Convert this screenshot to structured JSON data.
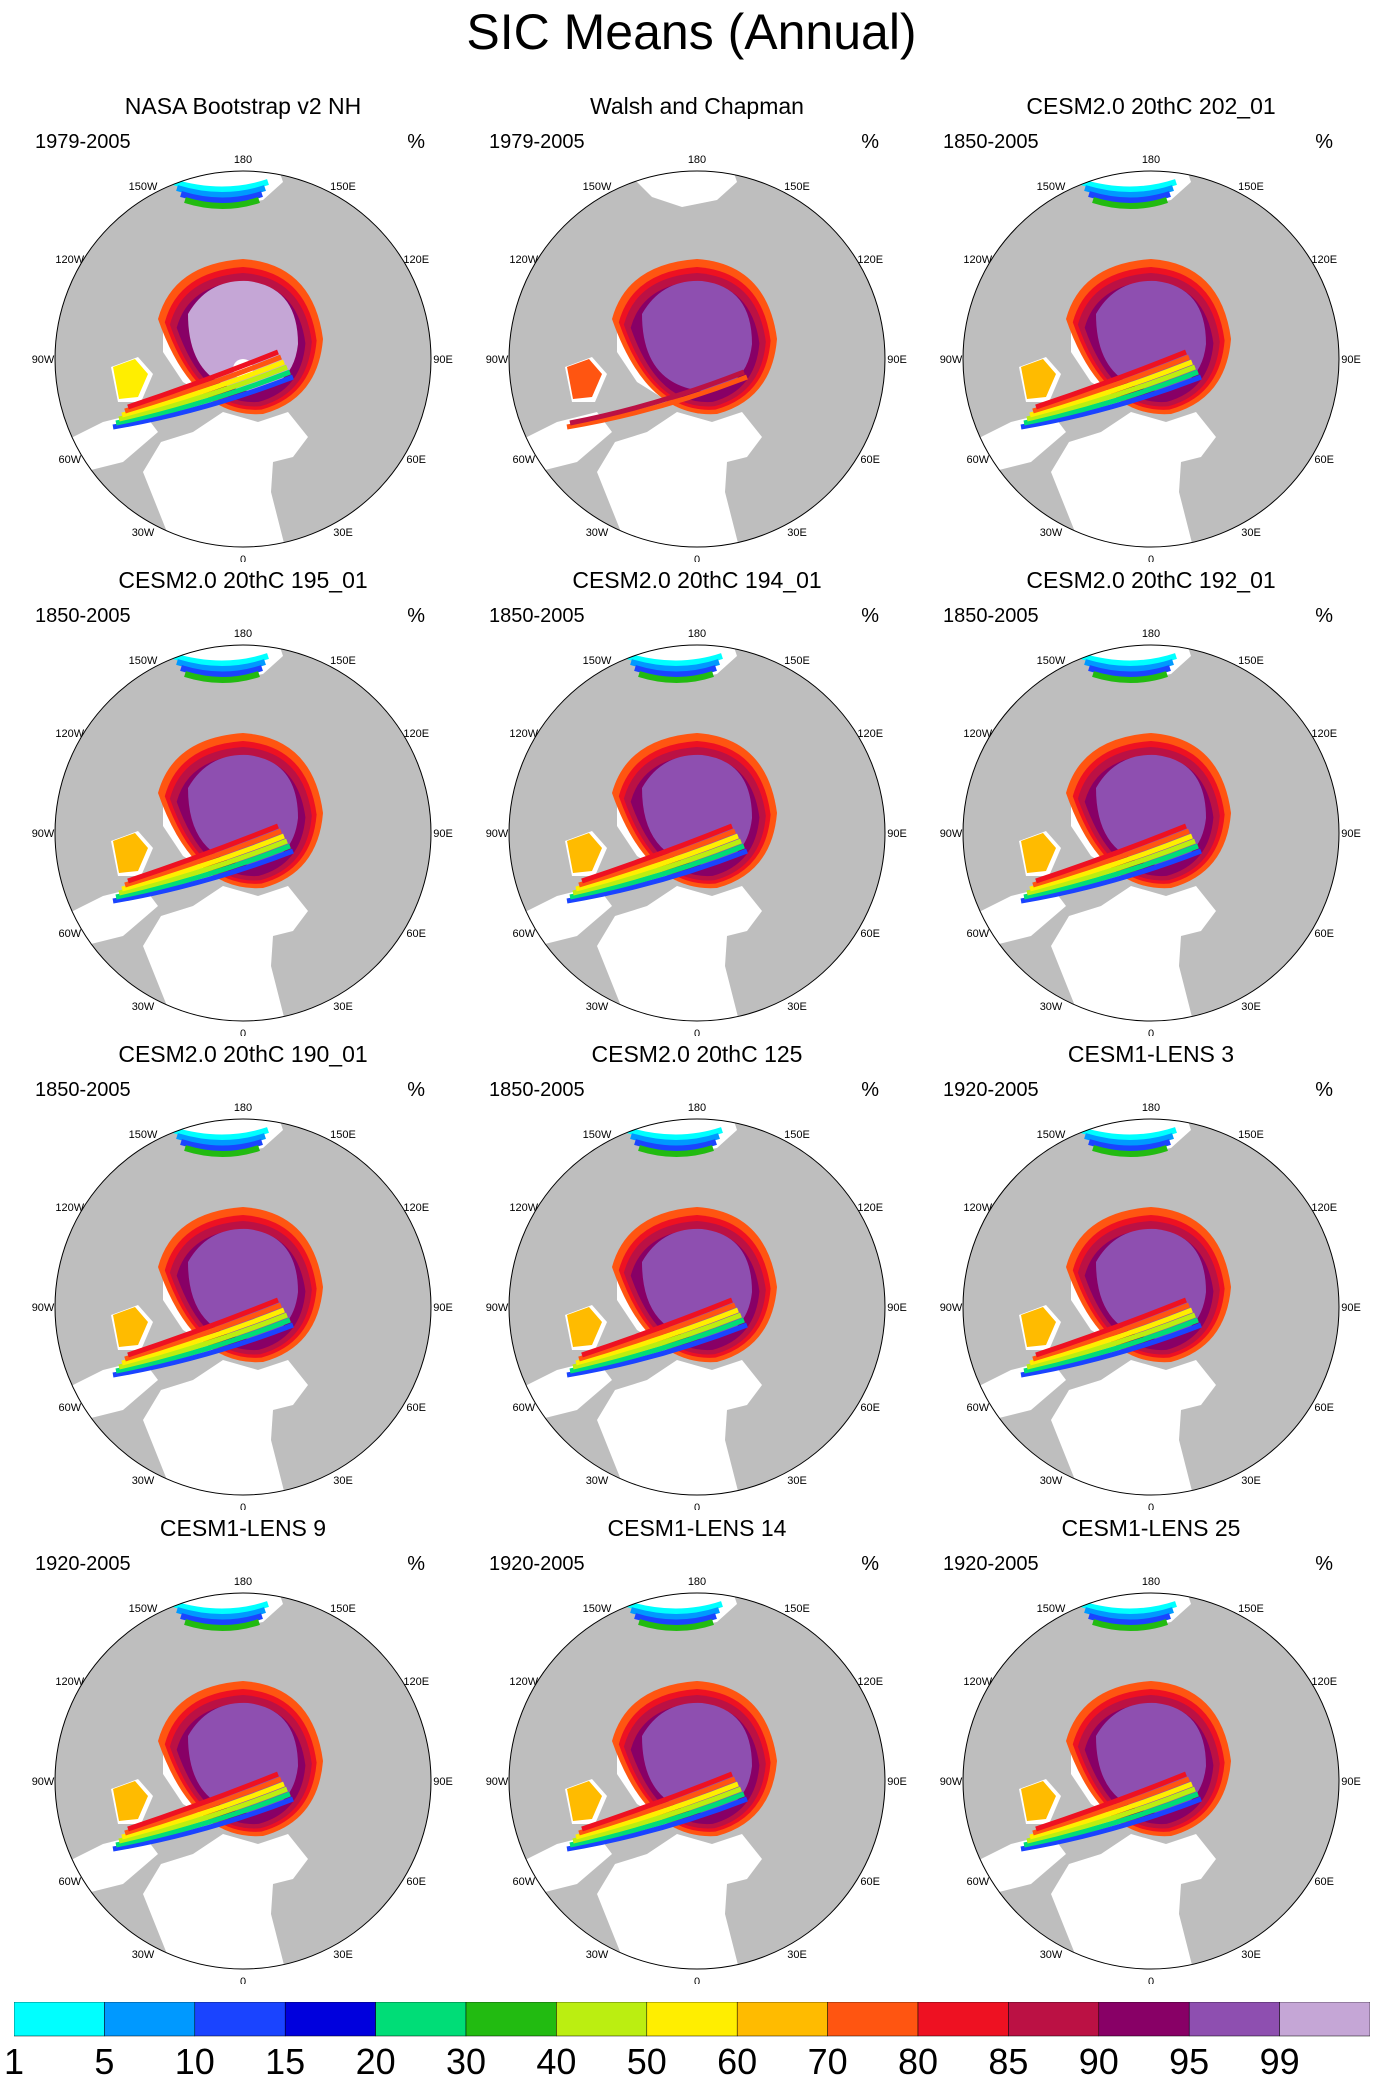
{
  "title": "SIC Means (Annual)",
  "unit": "%",
  "longitude_labels": [
    "180",
    "150E",
    "120E",
    "90E",
    "60E",
    "30E",
    "0",
    "30W",
    "60W",
    "90W",
    "120W",
    "150W"
  ],
  "panels": [
    {
      "title": "NASA Bootstrap v2 NH",
      "period": "1979-2005",
      "variant": "obs_nasa"
    },
    {
      "title": "Walsh and Chapman",
      "period": "1979-2005",
      "variant": "obs_walsh"
    },
    {
      "title": "CESM2.0 20thC 202_01",
      "period": "1850-2005",
      "variant": "model"
    },
    {
      "title": "CESM2.0 20thC 195_01",
      "period": "1850-2005",
      "variant": "model"
    },
    {
      "title": "CESM2.0 20thC 194_01",
      "period": "1850-2005",
      "variant": "model"
    },
    {
      "title": "CESM2.0 20thC 192_01",
      "period": "1850-2005",
      "variant": "model"
    },
    {
      "title": "CESM2.0 20thC 190_01",
      "period": "1850-2005",
      "variant": "model"
    },
    {
      "title": "CESM2.0 20thC 125",
      "period": "1850-2005",
      "variant": "model"
    },
    {
      "title": "CESM1-LENS 3",
      "period": "1920-2005",
      "variant": "lens"
    },
    {
      "title": "CESM1-LENS 9",
      "period": "1920-2005",
      "variant": "lens"
    },
    {
      "title": "CESM1-LENS 14",
      "period": "1920-2005",
      "variant": "lens"
    },
    {
      "title": "CESM1-LENS 25",
      "period": "1920-2005",
      "variant": "lens"
    }
  ],
  "colorbar": {
    "colors": [
      "#00ffff",
      "#0099ff",
      "#1a44ff",
      "#0000dd",
      "#00dd77",
      "#22bb11",
      "#bbee11",
      "#ffee00",
      "#ffbb00",
      "#ff5511",
      "#ee1122",
      "#bb1144",
      "#880066",
      "#8e4fb0",
      "#c5a6d6"
    ],
    "labels": [
      "1",
      "5",
      "10",
      "15",
      "20",
      "30",
      "40",
      "50",
      "60",
      "70",
      "80",
      "85",
      "90",
      "95",
      "99"
    ]
  },
  "colors": {
    "land": "#bebebe",
    "ocean": "#ffffff"
  }
}
